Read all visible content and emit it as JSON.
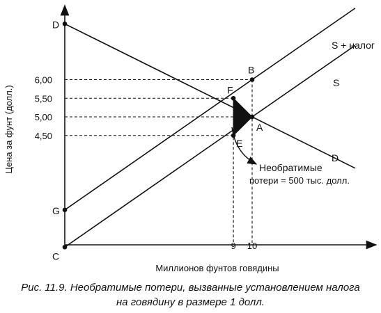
{
  "chart_data": {
    "type": "line",
    "xlabel": "Миллионов фунтов говядины",
    "ylabel": "Цена за фунт (долл.)",
    "y_ticks": [
      {
        "value": 6.0,
        "label": "6,00"
      },
      {
        "value": 5.5,
        "label": "5,50"
      },
      {
        "value": 5.0,
        "label": "5,00"
      },
      {
        "value": 4.5,
        "label": "4,50"
      }
    ],
    "x_ticks": [
      {
        "value": 9,
        "label": "9"
      },
      {
        "value": 10,
        "label": "10"
      }
    ],
    "series": [
      {
        "name": "D",
        "points": [
          [
            0,
            7.5
          ],
          [
            10,
            5.0
          ],
          [
            15.5,
            3.62
          ]
        ]
      },
      {
        "name": "S",
        "points": [
          [
            0,
            1.5
          ],
          [
            10,
            5.0
          ],
          [
            15.5,
            6.92
          ]
        ]
      },
      {
        "name": "S + налог",
        "points": [
          [
            0,
            2.5
          ],
          [
            10,
            6.0
          ],
          [
            15.5,
            7.92
          ]
        ]
      }
    ],
    "labeled_points": [
      {
        "label": "D",
        "x": 0,
        "y": 7.5
      },
      {
        "label": "G",
        "x": 0,
        "y": 2.5
      },
      {
        "label": "C",
        "x": 0,
        "y": 1.5
      },
      {
        "label": "F",
        "x": 9,
        "y": 5.5
      },
      {
        "label": "E",
        "x": 9,
        "y": 4.5
      },
      {
        "label": "A",
        "x": 10,
        "y": 5.0
      },
      {
        "label": "B",
        "x": 10,
        "y": 6.0
      }
    ],
    "shaded_triangle": [
      "F",
      "E",
      "A"
    ],
    "annotation": {
      "lines": [
        "Необратимые",
        "потери = 500 тыс. долл."
      ],
      "points_to": "triangle FEA"
    }
  },
  "caption": {
    "line1": "Рис. 11.9. Необратимые потери, вызванные установлением налога",
    "line2": "на говядину в размере 1 долл."
  }
}
